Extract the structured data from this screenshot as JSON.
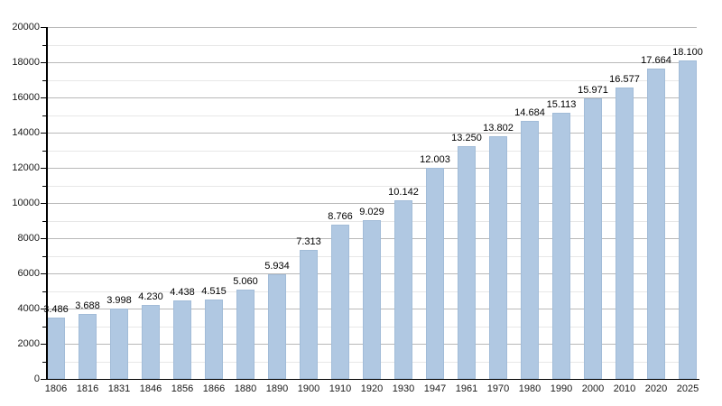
{
  "chart_data": {
    "type": "bar",
    "title": "",
    "xlabel": "",
    "ylabel": "",
    "categories": [
      "1806",
      "1816",
      "1831",
      "1846",
      "1856",
      "1866",
      "1880",
      "1890",
      "1900",
      "1910",
      "1920",
      "1930",
      "1947",
      "1961",
      "1970",
      "1980",
      "1990",
      "2000",
      "2010",
      "2020",
      "2025"
    ],
    "values": [
      3486,
      3688,
      3998,
      4230,
      4438,
      4515,
      5060,
      5934,
      7313,
      8766,
      9029,
      10142,
      12003,
      13250,
      13802,
      14684,
      15113,
      15971,
      16577,
      17664,
      18100
    ],
    "value_labels": [
      "3.486",
      "3.688",
      "3.998",
      "4.230",
      "4.438",
      "4.515",
      "5.060",
      "5.934",
      "7.313",
      "8.766",
      "9.029",
      "10.142",
      "12.003",
      "13.250",
      "13.802",
      "14.684",
      "15.113",
      "15.971",
      "16.577",
      "17.664",
      "18.100"
    ],
    "ylim": [
      0,
      20000
    ],
    "y_major_step": 2000,
    "y_minor_step": 1000,
    "y_tick_labels": [
      "0",
      "2000",
      "4000",
      "6000",
      "8000",
      "10000",
      "12000",
      "14000",
      "16000",
      "18000",
      "20000"
    ],
    "grid": true,
    "legend": false,
    "colors": {
      "bar_fill": "#b0c8e2",
      "bar_border": "#a2bcd8",
      "major_grid": "#b9b9b9",
      "minor_grid": "#e7e7e7",
      "axis": "#000000",
      "text": "#000000"
    }
  }
}
